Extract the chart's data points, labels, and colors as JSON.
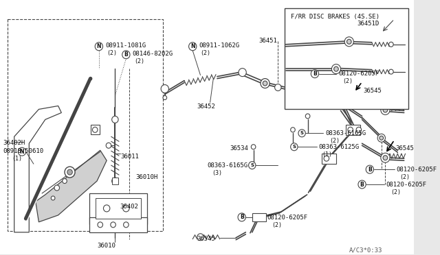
{
  "bg_color": "#e8e8e8",
  "diagram_bg": "#ffffff",
  "line_color": "#444444",
  "text_color": "#111111",
  "watermark": "A/C3*0:33",
  "inset_title": "F/RR DISC BRAKES (4S.SE)",
  "inset_label": "36451D",
  "fig_w": 6.4,
  "fig_h": 3.72,
  "dpi": 100
}
